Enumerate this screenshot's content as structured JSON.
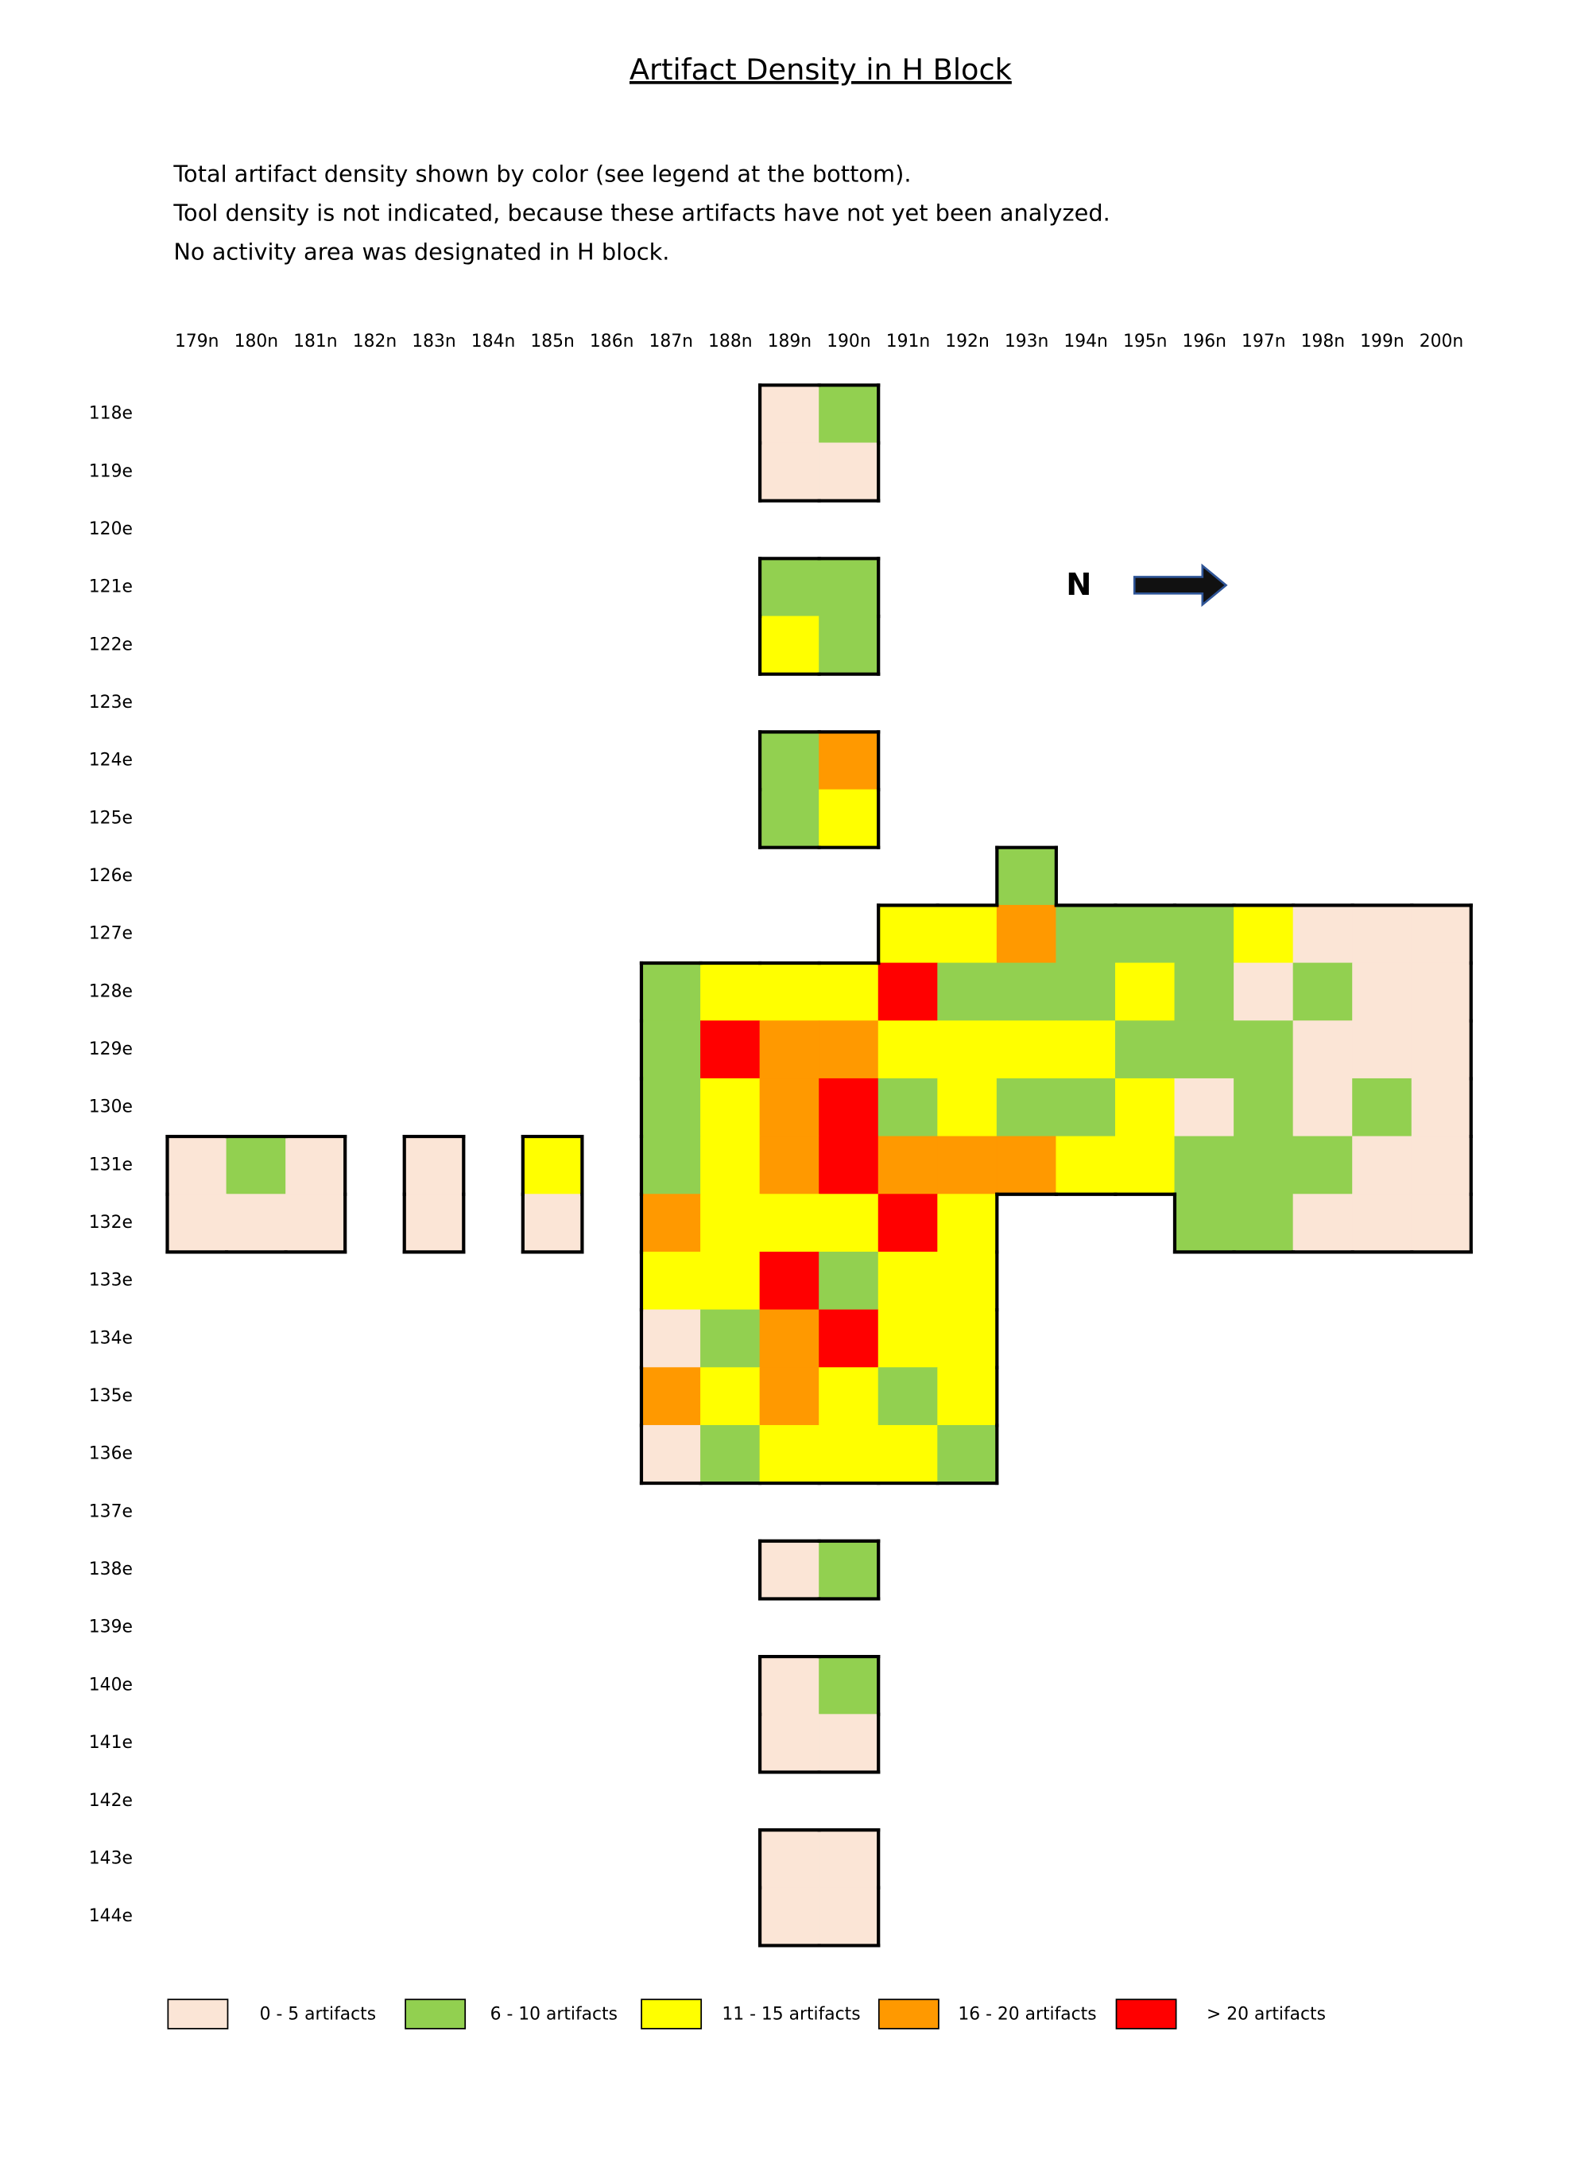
{
  "header": {
    "title": "Artifact Density in H Block",
    "notes": [
      "Total artifact density shown by color (see legend at the bottom).",
      "Tool density is not indicated, because these artifacts have not yet been analyzed.",
      "No activity area was designated in H block."
    ]
  },
  "compass": {
    "label": "N"
  },
  "grid": {
    "columns": [
      "179n",
      "180n",
      "181n",
      "182n",
      "183n",
      "184n",
      "185n",
      "186n",
      "187n",
      "188n",
      "189n",
      "190n",
      "191n",
      "192n",
      "193n",
      "194n",
      "195n",
      "196n",
      "197n",
      "198n",
      "199n",
      "200n"
    ],
    "rows": [
      "118e",
      "119e",
      "120e",
      "121e",
      "122e",
      "123e",
      "124e",
      "125e",
      "126e",
      "127e",
      "128e",
      "129e",
      "130e",
      "131e",
      "132e",
      "133e",
      "134e",
      "135e",
      "136e",
      "137e",
      "138e",
      "139e",
      "140e",
      "141e",
      "142e",
      "143e",
      "144e"
    ],
    "cells": [
      [
        null,
        null,
        null,
        null,
        null,
        null,
        null,
        null,
        null,
        null,
        0,
        1,
        null,
        null,
        null,
        null,
        null,
        null,
        null,
        null,
        null,
        null
      ],
      [
        null,
        null,
        null,
        null,
        null,
        null,
        null,
        null,
        null,
        null,
        0,
        0,
        null,
        null,
        null,
        null,
        null,
        null,
        null,
        null,
        null,
        null
      ],
      [
        null,
        null,
        null,
        null,
        null,
        null,
        null,
        null,
        null,
        null,
        null,
        null,
        null,
        null,
        null,
        null,
        null,
        null,
        null,
        null,
        null,
        null
      ],
      [
        null,
        null,
        null,
        null,
        null,
        null,
        null,
        null,
        null,
        null,
        1,
        1,
        null,
        null,
        null,
        null,
        null,
        null,
        null,
        null,
        null,
        null
      ],
      [
        null,
        null,
        null,
        null,
        null,
        null,
        null,
        null,
        null,
        null,
        2,
        1,
        null,
        null,
        null,
        null,
        null,
        null,
        null,
        null,
        null,
        null
      ],
      [
        null,
        null,
        null,
        null,
        null,
        null,
        null,
        null,
        null,
        null,
        null,
        null,
        null,
        null,
        null,
        null,
        null,
        null,
        null,
        null,
        null,
        null
      ],
      [
        null,
        null,
        null,
        null,
        null,
        null,
        null,
        null,
        null,
        null,
        1,
        3,
        null,
        null,
        null,
        null,
        null,
        null,
        null,
        null,
        null,
        null
      ],
      [
        null,
        null,
        null,
        null,
        null,
        null,
        null,
        null,
        null,
        null,
        1,
        2,
        null,
        null,
        null,
        null,
        null,
        null,
        null,
        null,
        null,
        null
      ],
      [
        null,
        null,
        null,
        null,
        null,
        null,
        null,
        null,
        null,
        null,
        null,
        null,
        null,
        null,
        1,
        null,
        null,
        null,
        null,
        null,
        null,
        null
      ],
      [
        null,
        null,
        null,
        null,
        null,
        null,
        null,
        null,
        null,
        null,
        null,
        null,
        2,
        2,
        3,
        1,
        1,
        1,
        2,
        0,
        0,
        0
      ],
      [
        null,
        null,
        null,
        null,
        null,
        null,
        null,
        null,
        1,
        2,
        2,
        2,
        4,
        1,
        1,
        1,
        2,
        1,
        0,
        1,
        0,
        0
      ],
      [
        null,
        null,
        null,
        null,
        null,
        null,
        null,
        null,
        1,
        4,
        3,
        3,
        2,
        2,
        2,
        2,
        1,
        1,
        1,
        0,
        0,
        0
      ],
      [
        null,
        null,
        null,
        null,
        null,
        null,
        null,
        null,
        1,
        2,
        3,
        4,
        1,
        2,
        1,
        1,
        2,
        0,
        1,
        0,
        1,
        0
      ],
      [
        0,
        1,
        0,
        null,
        0,
        null,
        2,
        null,
        1,
        2,
        3,
        4,
        3,
        3,
        3,
        2,
        2,
        1,
        1,
        1,
        0,
        0
      ],
      [
        0,
        0,
        0,
        null,
        0,
        null,
        0,
        null,
        3,
        2,
        2,
        2,
        4,
        2,
        null,
        null,
        null,
        1,
        1,
        0,
        0,
        0
      ],
      [
        null,
        null,
        null,
        null,
        null,
        null,
        null,
        null,
        2,
        2,
        4,
        1,
        2,
        2,
        null,
        null,
        null,
        null,
        null,
        null,
        null,
        null
      ],
      [
        null,
        null,
        null,
        null,
        null,
        null,
        null,
        null,
        0,
        1,
        3,
        4,
        2,
        2,
        null,
        null,
        null,
        null,
        null,
        null,
        null,
        null
      ],
      [
        null,
        null,
        null,
        null,
        null,
        null,
        null,
        null,
        3,
        2,
        3,
        2,
        1,
        2,
        null,
        null,
        null,
        null,
        null,
        null,
        null,
        null
      ],
      [
        null,
        null,
        null,
        null,
        null,
        null,
        null,
        null,
        0,
        1,
        2,
        2,
        2,
        1,
        null,
        null,
        null,
        null,
        null,
        null,
        null,
        null
      ],
      [
        null,
        null,
        null,
        null,
        null,
        null,
        null,
        null,
        null,
        null,
        null,
        null,
        null,
        null,
        null,
        null,
        null,
        null,
        null,
        null,
        null,
        null
      ],
      [
        null,
        null,
        null,
        null,
        null,
        null,
        null,
        null,
        null,
        null,
        0,
        1,
        null,
        null,
        null,
        null,
        null,
        null,
        null,
        null,
        null,
        null
      ],
      [
        null,
        null,
        null,
        null,
        null,
        null,
        null,
        null,
        null,
        null,
        null,
        null,
        null,
        null,
        null,
        null,
        null,
        null,
        null,
        null,
        null,
        null
      ],
      [
        null,
        null,
        null,
        null,
        null,
        null,
        null,
        null,
        null,
        null,
        0,
        1,
        null,
        null,
        null,
        null,
        null,
        null,
        null,
        null,
        null,
        null
      ],
      [
        null,
        null,
        null,
        null,
        null,
        null,
        null,
        null,
        null,
        null,
        0,
        0,
        null,
        null,
        null,
        null,
        null,
        null,
        null,
        null,
        null,
        null
      ],
      [
        null,
        null,
        null,
        null,
        null,
        null,
        null,
        null,
        null,
        null,
        null,
        null,
        null,
        null,
        null,
        null,
        null,
        null,
        null,
        null,
        null,
        null
      ],
      [
        null,
        null,
        null,
        null,
        null,
        null,
        null,
        null,
        null,
        null,
        0,
        0,
        null,
        null,
        null,
        null,
        null,
        null,
        null,
        null,
        null,
        null
      ],
      [
        null,
        null,
        null,
        null,
        null,
        null,
        null,
        null,
        null,
        null,
        0,
        0,
        null,
        null,
        null,
        null,
        null,
        null,
        null,
        null,
        null,
        null
      ]
    ]
  },
  "legend": [
    {
      "label": "0 - 5 artifacts",
      "color": "#fbe5d6"
    },
    {
      "label": "6 - 10 artifacts",
      "color": "#92d050"
    },
    {
      "label": "11 - 15 artifacts",
      "color": "#ffff00"
    },
    {
      "label": "16 - 20 artifacts",
      "color": "#ff9900"
    },
    {
      "label": "> 20 artifacts",
      "color": "#ff0000"
    }
  ]
}
